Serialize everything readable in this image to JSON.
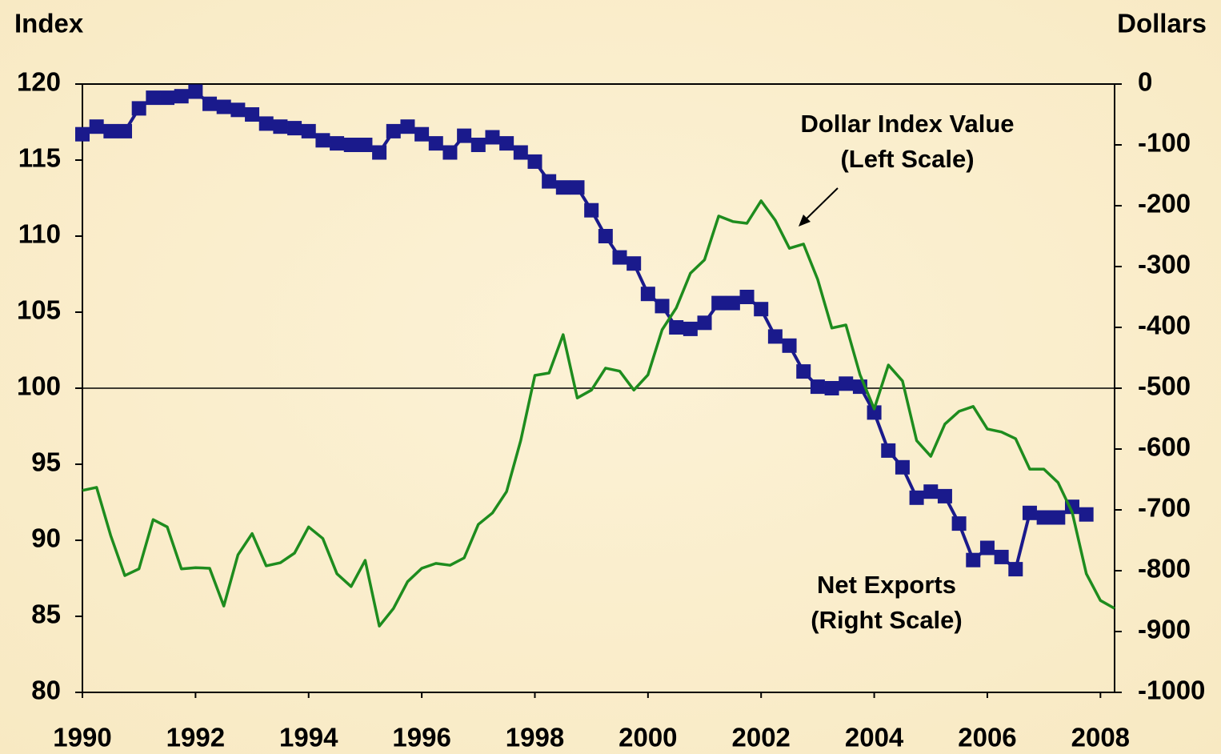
{
  "chart_data": {
    "type": "line",
    "y_label": "Index",
    "y2_label": "Dollars",
    "x": [
      1990,
      1990.25,
      1990.5,
      1990.75,
      1991,
      1991.25,
      1991.5,
      1991.75,
      1992,
      1992.25,
      1992.5,
      1992.75,
      1993,
      1993.25,
      1993.5,
      1993.75,
      1994,
      1994.25,
      1994.5,
      1994.75,
      1995,
      1995.25,
      1995.5,
      1995.75,
      1996,
      1996.25,
      1996.5,
      1996.75,
      1997,
      1997.25,
      1997.5,
      1997.75,
      1998,
      1998.25,
      1998.5,
      1998.75,
      1999,
      1999.25,
      1999.5,
      1999.75,
      2000,
      2000.25,
      2000.5,
      2000.75,
      2001,
      2001.25,
      2001.5,
      2001.75,
      2002,
      2002.25,
      2002.5,
      2002.75,
      2003,
      2003.25,
      2003.5,
      2003.75,
      2004,
      2004.25,
      2004.5,
      2004.75,
      2005,
      2005.25,
      2005.5,
      2005.75,
      2006,
      2006.25,
      2006.5,
      2006.75,
      2007,
      2007.25,
      2007.5,
      2007.75,
      2008,
      2008.25
    ],
    "series": [
      {
        "color": "#1a1a8c",
        "marker": "square",
        "values": [
          116.7,
          117.2,
          116.9,
          116.9,
          118.4,
          119.1,
          119.1,
          119.2,
          119.5,
          118.7,
          118.5,
          118.3,
          118.0,
          117.4,
          117.2,
          117.1,
          116.9,
          116.3,
          116.1,
          116.0,
          116.0,
          115.5,
          116.9,
          117.2,
          116.7,
          116.1,
          115.5,
          116.6,
          116.0,
          116.5,
          116.1,
          115.5,
          114.9,
          113.6,
          113.2,
          113.2,
          111.7,
          110.0,
          108.6,
          108.2,
          106.2,
          105.4,
          104.0,
          103.9,
          104.3,
          105.6,
          105.6,
          106.0,
          105.2,
          103.4,
          102.8,
          101.1,
          100.1,
          100.0,
          100.3,
          100.1,
          98.4,
          95.9,
          94.8,
          92.8,
          93.2,
          92.9,
          91.1,
          88.7,
          89.5,
          88.9,
          88.1,
          91.8,
          91.5,
          91.5,
          92.2,
          91.7,
          null,
          null
        ]
      },
      {
        "color": "#1e8c1e",
        "axis": "y2",
        "values": [
          -668,
          -663,
          -742,
          -808,
          -797,
          -716,
          -728,
          -797,
          -795,
          -796,
          -858,
          -774,
          -739,
          -792,
          -787,
          -771,
          -728,
          -747,
          -805,
          -826,
          -783,
          -891,
          -862,
          -818,
          -796,
          -788,
          -791,
          -779,
          -724,
          -705,
          -670,
          -586,
          -479,
          -475,
          -412,
          -516,
          -503,
          -467,
          -472,
          -503,
          -478,
          -404,
          -368,
          -311,
          -289,
          -217,
          -226,
          -229,
          -192,
          -224,
          -270,
          -263,
          -321,
          -401,
          -396,
          -478,
          -534,
          -462,
          -488,
          -586,
          -612,
          -559,
          -538,
          -530,
          -567,
          -572,
          -583,
          -633,
          -633,
          -655,
          -704,
          -805,
          -849,
          -862
        ]
      }
    ],
    "xlim": [
      1990,
      2008.25
    ],
    "xticks": [
      1990,
      1992,
      1994,
      1996,
      1998,
      2000,
      2002,
      2004,
      2006,
      2008
    ],
    "ylim": [
      80,
      120
    ],
    "yticks": [
      80,
      85,
      90,
      95,
      100,
      105,
      110,
      115,
      120
    ],
    "y2lim": [
      -1000,
      0
    ],
    "y2ticks": [
      -1000,
      -900,
      -800,
      -700,
      -600,
      -500,
      -400,
      -300,
      -200,
      -100,
      0
    ],
    "reference_line": 100,
    "annotations": [
      {
        "lines": [
          "Dollar Index Value",
          "(Left Scale)"
        ]
      },
      {
        "lines": [
          "Net Exports",
          "(Right Scale)"
        ]
      }
    ]
  }
}
